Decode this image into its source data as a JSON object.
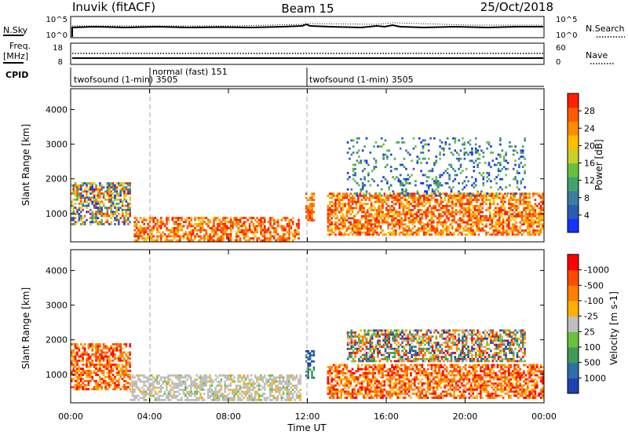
{
  "header": {
    "station": "Inuvik (fitACF)",
    "beam": "Beam 15",
    "date": "25/Oct/2018"
  },
  "noise_panel": {
    "left_label": "N.Sky",
    "right_label": "N.Search",
    "left_ticks": [
      "10^5",
      "10^0"
    ],
    "right_ticks": [
      "10^5",
      "10^0"
    ]
  },
  "freq_panel": {
    "left_label": "Freq.",
    "left_unit": "[MHz]",
    "right_label": "Nave",
    "left_ticks": [
      "18",
      "8"
    ],
    "right_ticks": [
      "60",
      "0"
    ]
  },
  "cpid_panel": {
    "label": "CPID",
    "modes": [
      {
        "name": "twofsound (1-min) 3505",
        "start_hour": 0
      },
      {
        "name": "normal (fast) 151",
        "start_hour": 4
      },
      {
        "name": "twofsound (1-min) 3505",
        "start_hour": 12
      }
    ]
  },
  "x_axis": {
    "label": "Time UT",
    "ticks": [
      "00:00",
      "04:00",
      "08:00",
      "12:00",
      "16:00",
      "20:00",
      "00:00"
    ],
    "range_hours": [
      0,
      24
    ]
  },
  "chart_data": [
    {
      "type": "heatmap",
      "title": "",
      "ylabel": "Slant Range [km]",
      "xlabel": "",
      "ylim": [
        180,
        4600
      ],
      "yticks": [
        "1000",
        "2000",
        "3000",
        "4000"
      ],
      "colorbar": {
        "label": "Power [dB]",
        "ticks": [
          "4",
          "8",
          "12",
          "16",
          "20",
          "24",
          "28"
        ],
        "colors": [
          "#1530ff",
          "#2a5cb4",
          "#3a7fa0",
          "#41a36c",
          "#6bbf3e",
          "#c9cf26",
          "#ffbf00",
          "#ff8c00",
          "#ff5a00",
          "#ff2000"
        ]
      },
      "echo_regions": [
        {
          "start_hour": 0.0,
          "end_hour": 3.0,
          "range_km": [
            700,
            1900
          ],
          "level": "mixed"
        },
        {
          "start_hour": 3.2,
          "end_hour": 11.6,
          "range_km": [
            250,
            900
          ],
          "level": "high"
        },
        {
          "start_hour": 11.9,
          "end_hour": 12.3,
          "range_km": [
            800,
            1600
          ],
          "level": "high"
        },
        {
          "start_hour": 13.0,
          "end_hour": 23.9,
          "range_km": [
            400,
            1600
          ],
          "level": "high"
        },
        {
          "start_hour": 14.0,
          "end_hour": 23.0,
          "range_km": [
            1500,
            3200
          ],
          "level": "low"
        }
      ]
    },
    {
      "type": "heatmap",
      "title": "",
      "ylabel": "Slant Range [km]",
      "xlabel": "Time UT",
      "ylim": [
        180,
        4600
      ],
      "yticks": [
        "1000",
        "2000",
        "3000",
        "4000"
      ],
      "colorbar": {
        "label": "Velocity [m s-1]",
        "ticks": [
          "1000",
          "500",
          "100",
          "25",
          "-25",
          "-100",
          "-500",
          "-1000"
        ],
        "colors": [
          "#2040b0",
          "#2b6fa8",
          "#3f9a5a",
          "#6ac13c",
          "#bfbfbf",
          "#ffb000",
          "#ff8000",
          "#ff4a00",
          "#ff0000"
        ]
      },
      "echo_regions": [
        {
          "start_hour": 0.0,
          "end_hour": 3.0,
          "range_km": [
            600,
            1900
          ],
          "level": "negative"
        },
        {
          "start_hour": 3.0,
          "end_hour": 11.6,
          "range_km": [
            250,
            1000
          ],
          "level": "ground"
        },
        {
          "start_hour": 11.9,
          "end_hour": 12.3,
          "range_km": [
            900,
            1700
          ],
          "level": "positive"
        },
        {
          "start_hour": 13.0,
          "end_hour": 23.9,
          "range_km": [
            300,
            1300
          ],
          "level": "negative"
        },
        {
          "start_hour": 14.0,
          "end_hour": 23.0,
          "range_km": [
            1400,
            2300
          ],
          "level": "mixed"
        }
      ]
    }
  ]
}
